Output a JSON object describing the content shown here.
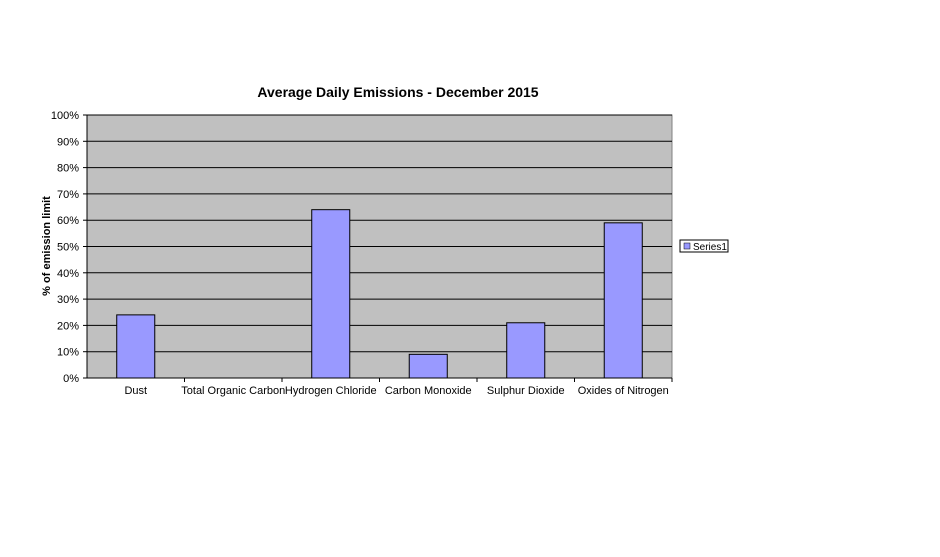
{
  "chart_data": {
    "type": "bar",
    "title": "Average Daily Emissions - December 2015",
    "xlabel": "",
    "ylabel": "% of emission limit",
    "categories": [
      "Dust",
      "Total Organic Carbon",
      "Hydrogen Chloride",
      "Carbon Monoxide",
      "Sulphur Dioxide",
      "Oxides of Nitrogen"
    ],
    "series": [
      {
        "name": "Series1",
        "values": [
          24,
          0,
          64,
          9,
          21,
          59
        ]
      }
    ],
    "ylim": [
      0,
      100
    ],
    "yticks": [
      "0%",
      "10%",
      "20%",
      "30%",
      "40%",
      "50%",
      "60%",
      "70%",
      "80%",
      "90%",
      "100%"
    ],
    "grid": true,
    "legend": "right",
    "colors": {
      "plot_background": "#c0c0c0",
      "bar_fill": "#9999ff",
      "bar_stroke": "#000000",
      "gridline": "#000000"
    }
  }
}
